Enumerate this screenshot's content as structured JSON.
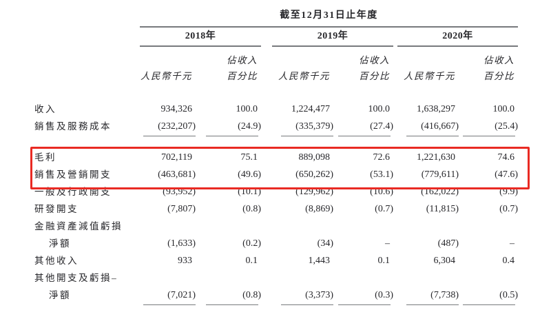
{
  "table": {
    "title": "截至12月31日止年度",
    "years": [
      "2018年",
      "2019年",
      "2020年"
    ],
    "col_headers": {
      "amount": "人民幣千元",
      "pct_line1": "佔收入",
      "pct_line2": "百分比"
    },
    "rows": [
      {
        "label": "收入",
        "values": [
          "934,326",
          "100.0",
          "1,224,477",
          "100.0",
          "1,638,297",
          "100.0"
        ]
      },
      {
        "label": "銷售及服務成本",
        "values": [
          "(232,207)",
          "(24.9)",
          "(335,379)",
          "(27.4)",
          "(416,667)",
          "(25.4)"
        ],
        "rule_after": true,
        "gap_after": true
      },
      {
        "label": "毛利",
        "values": [
          "702,119",
          "75.1",
          "889,098",
          "72.6",
          "1,221,630",
          "74.6"
        ],
        "highlighted": true
      },
      {
        "label": "銷售及營銷開支",
        "values": [
          "(463,681)",
          "(49.6)",
          "(650,262)",
          "(53.1)",
          "(779,611)",
          "(47.6)"
        ],
        "highlighted": true
      },
      {
        "label": "一般及行政開支",
        "values": [
          "(93,952)",
          "(10.1)",
          "(129,962)",
          "(10.6)",
          "(162,022)",
          "(9.9)"
        ]
      },
      {
        "label": "研發開支",
        "values": [
          "(7,807)",
          "(0.8)",
          "(8,869)",
          "(0.7)",
          "(11,815)",
          "(0.7)"
        ]
      },
      {
        "label": "金融資產減值虧損",
        "values": [
          "",
          "",
          "",
          "",
          "",
          ""
        ]
      },
      {
        "label": "淨額",
        "indent": true,
        "values": [
          "(1,633)",
          "(0.2)",
          "(34)",
          "–",
          "(487)",
          "–"
        ]
      },
      {
        "label": "其他收入",
        "values": [
          "933",
          "0.1",
          "1,443",
          "0.1",
          "6,304",
          "0.4"
        ]
      },
      {
        "label": "其他開支及虧損–",
        "values": [
          "",
          "",
          "",
          "",
          "",
          ""
        ]
      },
      {
        "label": "淨額",
        "indent": true,
        "values": [
          "(7,021)",
          "(0.8)",
          "(3,373)",
          "(0.3)",
          "(7,738)",
          "(0.5)"
        ],
        "rule_after": true
      }
    ]
  },
  "colors": {
    "highlight": "#e92a23",
    "rule": "#77797c",
    "text": "#26262a"
  }
}
